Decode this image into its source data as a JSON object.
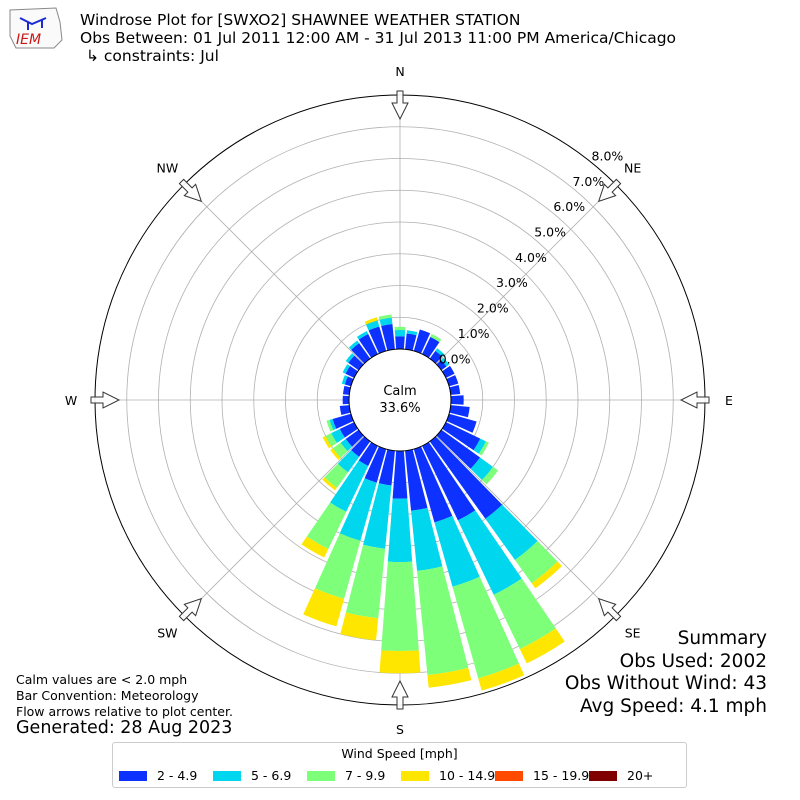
{
  "header": {
    "title": "Windrose Plot for [SWXO2] SHAWNEE WEATHER STATION",
    "subtitle": "Obs Between: 01 Jul 2011 12:00 AM - 31 Jul 2013 11:00 PM America/Chicago",
    "constraints": "↳ constraints: Jul",
    "logo_text": "IEM"
  },
  "calm": {
    "label": "Calm",
    "value": "33.6%"
  },
  "summary": {
    "heading": "Summary",
    "obs_used": "Obs Used: 2002",
    "obs_without_wind": "Obs Without Wind: 43",
    "avg_speed": "Avg Speed: 4.1 mph"
  },
  "notes": {
    "calm_note": "Calm values are < 2.0 mph",
    "bar_convention": "Bar Convention: Meteorology",
    "flow_arrows": "Flow arrows relative to plot center.",
    "generated": "Generated: 28 Aug 2023"
  },
  "chart_data": {
    "type": "windrose",
    "radial_unit": "%",
    "radial_ticks": [
      "0.0%",
      "1.0%",
      "2.0%",
      "3.0%",
      "4.0%",
      "5.0%",
      "6.0%",
      "7.0%",
      "8.0%"
    ],
    "radial_range": [
      0,
      8
    ],
    "direction_labels": [
      "N",
      "NE",
      "E",
      "SE",
      "S",
      "SW",
      "W",
      "NW"
    ],
    "directions_deg": [
      0,
      10,
      20,
      30,
      40,
      50,
      60,
      70,
      80,
      90,
      100,
      110,
      120,
      130,
      140,
      150,
      160,
      170,
      180,
      190,
      200,
      210,
      220,
      230,
      240,
      250,
      260,
      270,
      280,
      290,
      300,
      310,
      320,
      330,
      340,
      350
    ],
    "legend_title": "Wind Speed [mph]",
    "bins": [
      {
        "name": "2 - 4.9",
        "color": "#0d32ff"
      },
      {
        "name": "5 - 6.9",
        "color": "#00d7ee"
      },
      {
        "name": "7 - 9.9",
        "color": "#7dff7a"
      },
      {
        "name": "10 - 14.9",
        "color": "#ffe600"
      },
      {
        "name": "15 - 19.9",
        "color": "#ff4a00"
      },
      {
        "name": "20+",
        "color": "#800000"
      }
    ],
    "cumulative_pct": [
      [
        0.4,
        0.6,
        0.7,
        0.7,
        0,
        0
      ],
      [
        0.5,
        0.6,
        0.6,
        0.6,
        0,
        0
      ],
      [
        0.7,
        0.7,
        0.7,
        0.7,
        0,
        0
      ],
      [
        0.6,
        0.6,
        0.7,
        0.7,
        0,
        0
      ],
      [
        0.3,
        0.4,
        0.4,
        0.4,
        0,
        0
      ],
      [
        0.2,
        0.3,
        0.3,
        0.3,
        0,
        0
      ],
      [
        0.3,
        0.3,
        0.3,
        0.3,
        0,
        0
      ],
      [
        0.3,
        0.3,
        0.3,
        0.3,
        0,
        0
      ],
      [
        0.3,
        0.3,
        0.3,
        0.3,
        0,
        0
      ],
      [
        0.4,
        0.4,
        0.4,
        0.4,
        0,
        0
      ],
      [
        0.6,
        0.6,
        0.6,
        0.6,
        0,
        0
      ],
      [
        0.9,
        0.9,
        0.9,
        0.9,
        0,
        0
      ],
      [
        1.2,
        1.4,
        1.5,
        1.5,
        0,
        0
      ],
      [
        1.5,
        2.0,
        2.2,
        2.2,
        0,
        0
      ],
      [
        3.0,
        4.6,
        5.5,
        5.7,
        0,
        0
      ],
      [
        2.6,
        5.2,
        7.1,
        7.6,
        0,
        0
      ],
      [
        2.4,
        4.5,
        7.5,
        7.9,
        0,
        0
      ],
      [
        1.9,
        3.8,
        7.1,
        7.5,
        0,
        0
      ],
      [
        1.5,
        3.5,
        6.3,
        7.0,
        0,
        0
      ],
      [
        1.1,
        3.1,
        5.3,
        6.0,
        0,
        0
      ],
      [
        1.1,
        3.0,
        4.9,
        5.8,
        0,
        0
      ],
      [
        0.7,
        2.3,
        3.6,
        3.9,
        0,
        0
      ],
      [
        0.6,
        1.2,
        1.8,
        1.9,
        0,
        0
      ],
      [
        0.5,
        0.7,
        1.0,
        1.1,
        0,
        0
      ],
      [
        0.5,
        0.8,
        1.0,
        1.1,
        0,
        0
      ],
      [
        0.6,
        0.7,
        0.8,
        0.8,
        0,
        0
      ],
      [
        0.3,
        0.3,
        0.3,
        0.3,
        0,
        0
      ],
      [
        0.2,
        0.2,
        0.2,
        0.2,
        0,
        0
      ],
      [
        0.2,
        0.2,
        0.2,
        0.2,
        0,
        0
      ],
      [
        0.2,
        0.3,
        0.3,
        0.3,
        0,
        0
      ],
      [
        0.3,
        0.4,
        0.4,
        0.4,
        0,
        0
      ],
      [
        0.4,
        0.5,
        0.5,
        0.5,
        0,
        0
      ],
      [
        0.6,
        0.7,
        0.7,
        0.7,
        0,
        0
      ],
      [
        0.7,
        0.8,
        0.8,
        0.8,
        0,
        0
      ],
      [
        0.8,
        1.0,
        1.0,
        1.1,
        0,
        0
      ],
      [
        0.8,
        1.0,
        1.1,
        1.1,
        0,
        0
      ]
    ]
  }
}
